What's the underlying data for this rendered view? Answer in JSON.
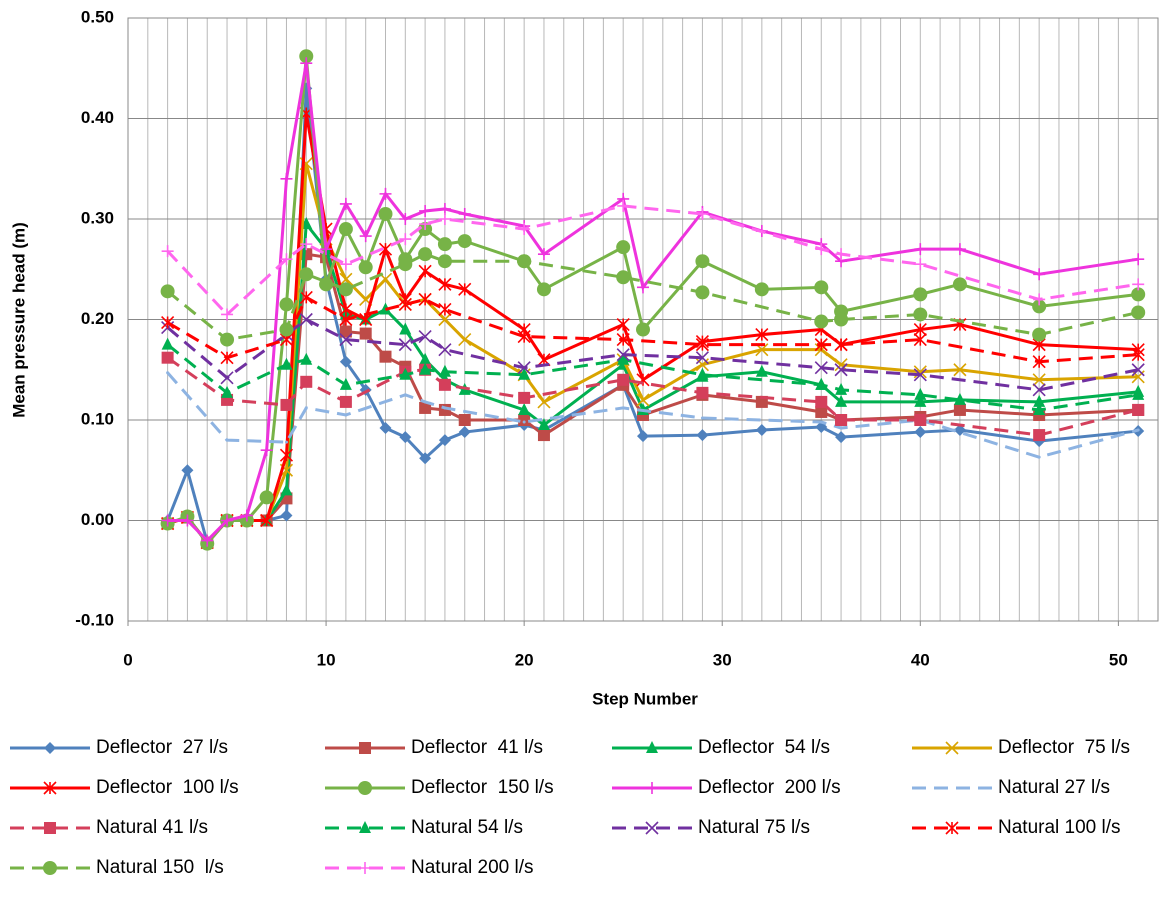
{
  "chart_data": {
    "type": "line",
    "xlabel": "Step Number",
    "ylabel": "Mean pressure head (m)",
    "xlim": [
      0,
      52
    ],
    "xticks": [
      0,
      10,
      20,
      30,
      40,
      50
    ],
    "ylim": [
      -0.1,
      0.5
    ],
    "yticks": [
      {
        "value": -0.1,
        "label": "-0.10"
      },
      {
        "value": 0,
        "label": "0.00"
      },
      {
        "value": 0.1,
        "label": "0.10"
      },
      {
        "value": 0.2,
        "label": "0.20"
      },
      {
        "value": 0.3,
        "label": "0.30"
      },
      {
        "value": 0.4,
        "label": "0.40"
      },
      {
        "value": 0.5,
        "label": "0.50"
      }
    ],
    "grid": true,
    "legend": "bottom",
    "series": [
      {
        "name": "Deflector  27 l/s",
        "color": "#4f81bd",
        "marker": "diamond",
        "line_style": "solid",
        "x": [
          2,
          3,
          4,
          5,
          6,
          7,
          8,
          9,
          10,
          11,
          12,
          13,
          14,
          15,
          16,
          17,
          20,
          21,
          25,
          26,
          29,
          32,
          35,
          36,
          40,
          42,
          46,
          51
        ],
        "values": [
          0,
          0.05,
          -0.022,
          0,
          0,
          0,
          0.005,
          0.43,
          0.24,
          0.158,
          0.13,
          0.092,
          0.083,
          0.062,
          0.08,
          0.088,
          0.095,
          0.09,
          0.135,
          0.084,
          0.085,
          0.09,
          0.093,
          0.083,
          0.088,
          0.09,
          0.079,
          0.089
        ]
      },
      {
        "name": "Deflector  41 l/s",
        "color": "#be4b48",
        "marker": "square",
        "line_style": "solid",
        "x": [
          2,
          3,
          4,
          5,
          6,
          7,
          8,
          9,
          10,
          11,
          12,
          13,
          14,
          15,
          16,
          17,
          20,
          21,
          25,
          26,
          29,
          32,
          35,
          36,
          40,
          42,
          46,
          51
        ],
        "values": [
          -0.003,
          0.003,
          -0.022,
          0,
          0,
          0,
          0.022,
          0.265,
          0.262,
          0.188,
          0.186,
          0.163,
          0.153,
          0.112,
          0.11,
          0.1,
          0.1,
          0.085,
          0.135,
          0.105,
          0.125,
          0.118,
          0.108,
          0.1,
          0.103,
          0.11,
          0.105,
          0.11
        ]
      },
      {
        "name": "Deflector  54 l/s",
        "color": "#00b050",
        "marker": "triangle",
        "line_style": "solid",
        "x": [
          2,
          3,
          4,
          5,
          6,
          7,
          8,
          9,
          10,
          11,
          12,
          13,
          14,
          15,
          16,
          17,
          20,
          21,
          25,
          26,
          29,
          32,
          35,
          36,
          40,
          42,
          46,
          51
        ],
        "values": [
          -0.003,
          0.003,
          -0.022,
          0,
          0,
          0,
          0.03,
          0.295,
          0.27,
          0.205,
          0.2,
          0.21,
          0.19,
          0.16,
          0.14,
          0.13,
          0.11,
          0.095,
          0.155,
          0.11,
          0.143,
          0.148,
          0.135,
          0.118,
          0.118,
          0.12,
          0.118,
          0.128
        ]
      },
      {
        "name": "Deflector  75 l/s",
        "color": "#d9a400",
        "marker": "x",
        "line_style": "solid",
        "x": [
          2,
          3,
          4,
          5,
          6,
          7,
          8,
          9,
          10,
          11,
          12,
          13,
          14,
          15,
          16,
          17,
          20,
          21,
          25,
          26,
          29,
          32,
          35,
          36,
          40,
          42,
          46,
          51
        ],
        "values": [
          -0.003,
          0.003,
          -0.022,
          0,
          0,
          0,
          0.05,
          0.355,
          0.28,
          0.24,
          0.22,
          0.24,
          0.215,
          0.22,
          0.2,
          0.18,
          0.145,
          0.118,
          0.16,
          0.12,
          0.155,
          0.17,
          0.17,
          0.155,
          0.148,
          0.15,
          0.14,
          0.143
        ]
      },
      {
        "name": "Deflector  100 l/s",
        "color": "#ff0000",
        "marker": "star",
        "line_style": "solid",
        "x": [
          2,
          3,
          4,
          5,
          6,
          7,
          8,
          9,
          10,
          11,
          12,
          13,
          14,
          15,
          16,
          17,
          20,
          21,
          25,
          26,
          29,
          32,
          35,
          36,
          40,
          42,
          46,
          51
        ],
        "values": [
          -0.003,
          0.003,
          -0.022,
          0,
          0,
          0,
          0.065,
          0.405,
          0.29,
          0.21,
          0.2,
          0.27,
          0.22,
          0.248,
          0.235,
          0.23,
          0.19,
          0.16,
          0.195,
          0.14,
          0.178,
          0.185,
          0.19,
          0.175,
          0.19,
          0.195,
          0.175,
          0.17
        ]
      },
      {
        "name": "Deflector  150 l/s",
        "color": "#77b347",
        "marker": "circle",
        "line_style": "solid",
        "x": [
          2,
          3,
          4,
          5,
          6,
          7,
          8,
          9,
          10,
          11,
          12,
          13,
          14,
          15,
          16,
          17,
          20,
          21,
          25,
          26,
          29,
          32,
          35,
          36,
          40,
          42,
          46,
          51
        ],
        "values": [
          -0.003,
          0.004,
          -0.023,
          0,
          0,
          0.023,
          0.215,
          0.462,
          0.235,
          0.29,
          0.252,
          0.305,
          0.26,
          0.29,
          0.275,
          0.278,
          0.258,
          0.23,
          0.272,
          0.19,
          0.258,
          0.23,
          0.232,
          0.208,
          0.225,
          0.235,
          0.213,
          0.225
        ]
      },
      {
        "name": "Deflector  200 l/s",
        "color": "#ee33dd",
        "marker": "plus",
        "line_style": "solid",
        "x": [
          2,
          3,
          4,
          5,
          6,
          7,
          8,
          9,
          10,
          11,
          12,
          13,
          14,
          15,
          16,
          17,
          20,
          21,
          25,
          26,
          29,
          32,
          35,
          36,
          40,
          42,
          46,
          51
        ],
        "values": [
          0,
          0,
          -0.02,
          0,
          0.005,
          0.07,
          0.34,
          0.455,
          0.27,
          0.315,
          0.283,
          0.325,
          0.3,
          0.308,
          0.31,
          0.305,
          0.293,
          0.265,
          0.32,
          0.232,
          0.307,
          0.288,
          0.275,
          0.258,
          0.27,
          0.27,
          0.245,
          0.26
        ]
      },
      {
        "name": "Natural 27 l/s",
        "color": "#8db3e2",
        "marker": "none",
        "line_style": "dashed",
        "x": [
          2,
          5,
          8,
          9,
          11,
          14,
          15,
          16,
          20,
          25,
          29,
          35,
          36,
          40,
          46,
          51
        ],
        "values": [
          0.147,
          0.08,
          0.078,
          0.112,
          0.105,
          0.125,
          0.118,
          0.112,
          0.098,
          0.112,
          0.102,
          0.098,
          0.092,
          0.1,
          0.063,
          0.09
        ]
      },
      {
        "name": "Natural 41 l/s",
        "color": "#d43f5b",
        "marker": "square",
        "line_style": "dashed",
        "x": [
          2,
          5,
          8,
          9,
          11,
          14,
          15,
          16,
          20,
          25,
          29,
          35,
          36,
          40,
          46,
          51
        ],
        "values": [
          0.162,
          0.12,
          0.115,
          0.138,
          0.118,
          0.148,
          0.15,
          0.135,
          0.122,
          0.14,
          0.127,
          0.118,
          0.1,
          0.1,
          0.085,
          0.11
        ]
      },
      {
        "name": "Natural 54 l/s",
        "color": "#00b050",
        "marker": "triangle",
        "line_style": "dashed",
        "x": [
          2,
          5,
          8,
          9,
          11,
          14,
          15,
          16,
          20,
          25,
          29,
          35,
          36,
          40,
          46,
          51
        ],
        "values": [
          0.175,
          0.127,
          0.155,
          0.16,
          0.135,
          0.145,
          0.15,
          0.148,
          0.145,
          0.16,
          0.145,
          0.135,
          0.13,
          0.125,
          0.11,
          0.125
        ]
      },
      {
        "name": "Natural 75 l/s",
        "color": "#7030a0",
        "marker": "x",
        "line_style": "dashed",
        "x": [
          2,
          5,
          8,
          9,
          11,
          14,
          15,
          16,
          20,
          25,
          29,
          35,
          36,
          40,
          46,
          51
        ],
        "values": [
          0.192,
          0.142,
          0.185,
          0.2,
          0.18,
          0.175,
          0.183,
          0.17,
          0.152,
          0.165,
          0.162,
          0.152,
          0.15,
          0.145,
          0.13,
          0.15
        ]
      },
      {
        "name": "Natural 100 l/s",
        "color": "#ff0000",
        "marker": "star",
        "line_style": "dashed",
        "x": [
          2,
          5,
          8,
          9,
          11,
          14,
          15,
          16,
          20,
          25,
          29,
          35,
          36,
          40,
          46,
          51
        ],
        "values": [
          0.197,
          0.162,
          0.18,
          0.222,
          0.2,
          0.215,
          0.22,
          0.21,
          0.183,
          0.18,
          0.175,
          0.175,
          0.175,
          0.18,
          0.158,
          0.165
        ]
      },
      {
        "name": "Natural 150  l/s",
        "color": "#77b347",
        "marker": "circle",
        "line_style": "dashed",
        "x": [
          2,
          5,
          8,
          9,
          11,
          14,
          15,
          16,
          20,
          25,
          29,
          35,
          36,
          40,
          46,
          51
        ],
        "values": [
          0.228,
          0.18,
          0.19,
          0.245,
          0.23,
          0.255,
          0.265,
          0.258,
          0.258,
          0.242,
          0.227,
          0.198,
          0.2,
          0.205,
          0.185,
          0.207
        ]
      },
      {
        "name": "Natural 200 l/s",
        "color": "#ff66ee",
        "marker": "plus",
        "line_style": "dashed",
        "x": [
          2,
          5,
          8,
          9,
          11,
          14,
          15,
          16,
          20,
          25,
          29,
          35,
          36,
          40,
          46,
          51
        ],
        "values": [
          0.268,
          0.205,
          0.26,
          0.275,
          0.255,
          0.28,
          0.295,
          0.3,
          0.29,
          0.313,
          0.305,
          0.27,
          0.265,
          0.255,
          0.22,
          0.235
        ]
      }
    ]
  }
}
